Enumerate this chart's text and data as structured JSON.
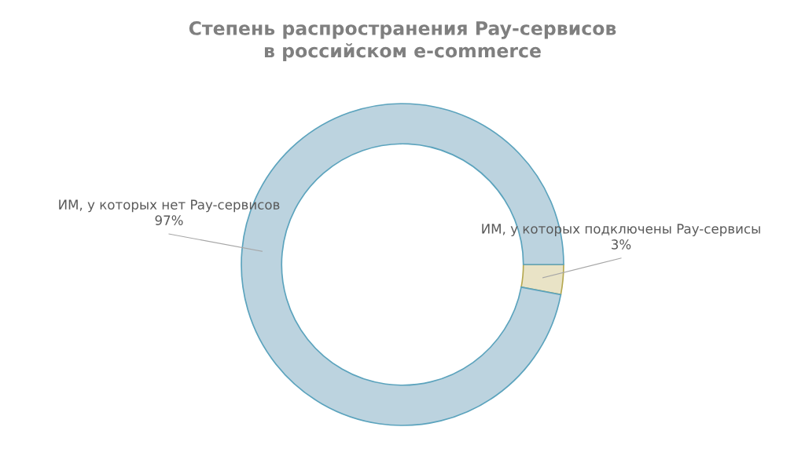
{
  "chart_data": {
    "type": "donut",
    "title": "Степень распространения Pay-сервисов\nв российском e-commerce",
    "categories": [
      "ИМ, у которых подключены Pay-сервисы",
      "ИМ, у которых нет Pay-сервисов"
    ],
    "values": [
      3,
      97
    ],
    "colors": [
      "#e9e3c6",
      "#bcd3df"
    ],
    "value_labels": [
      "3%",
      "97%"
    ],
    "legend": false
  }
}
